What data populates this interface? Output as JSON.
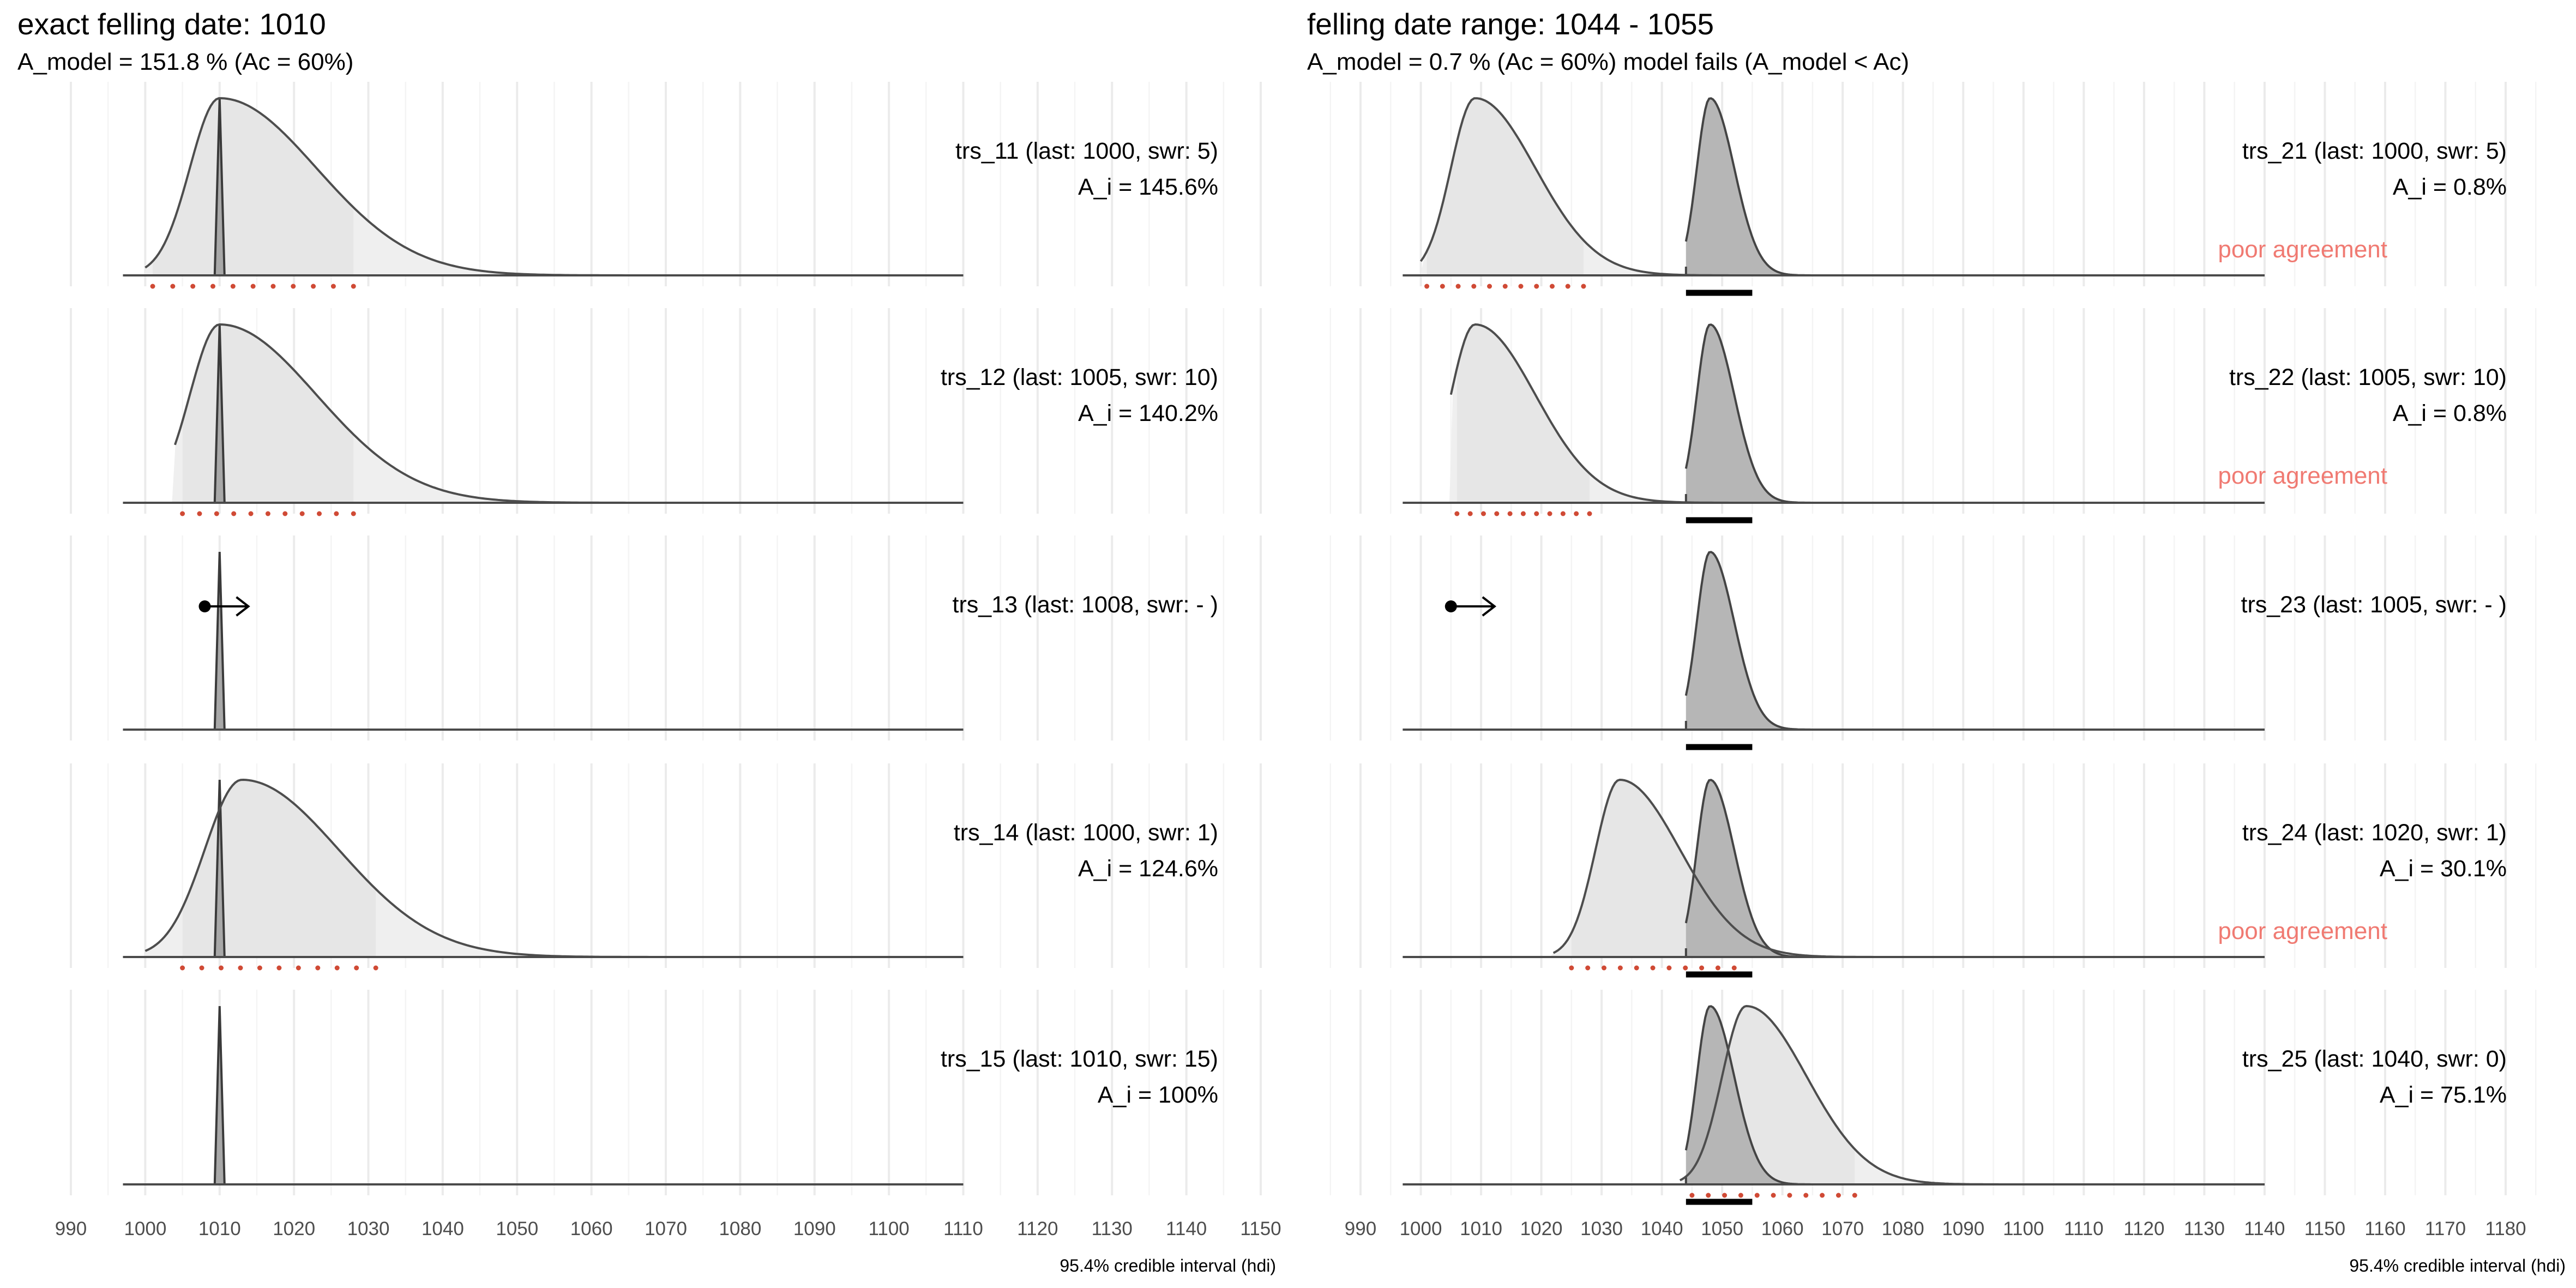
{
  "chart_data": [
    {
      "type": "area",
      "title": "exact felling date:  1010",
      "subtitle": "A_model =  151.8 % (Ac = 60%)",
      "subtitle_color": "#000000",
      "xlabel": "95.4% credible interval (hdi)",
      "xlim": [
        985,
        1157
      ],
      "x_ticks": [
        990,
        1000,
        1010,
        1020,
        1030,
        1040,
        1050,
        1060,
        1070,
        1080,
        1090,
        1100,
        1110,
        1120,
        1130,
        1140,
        1150
      ],
      "density_range": [
        997,
        1110
      ],
      "grid": true,
      "model": {
        "kind": "spike",
        "value": 1010
      },
      "series": [
        {
          "label": "trs_11 (last: 1000, swr: 5)",
          "agreement": "A_i = 145.6%",
          "warning": "",
          "kind": "density",
          "mode": 1010,
          "left_sd": 4,
          "right_sd": 13,
          "start": 1000,
          "hdi": [
            1001,
            1028
          ]
        },
        {
          "label": "trs_12 (last: 1005, swr: 10)",
          "agreement": "A_i = 140.2%",
          "warning": "",
          "kind": "density",
          "mode": 1010,
          "left_sd": 4,
          "right_sd": 13,
          "start": 1004,
          "hdi": [
            1005,
            1028
          ]
        },
        {
          "label": "trs_13 (last: 1008, swr: - )",
          "agreement": "",
          "warning": "",
          "kind": "arrow",
          "from": 1008
        },
        {
          "label": "trs_14 (last: 1000, swr: 1)",
          "agreement": "A_i = 124.6%",
          "warning": "",
          "kind": "density",
          "mode": 1013,
          "left_sd": 5,
          "right_sd": 13,
          "start": 1000,
          "hdi": [
            1005,
            1031
          ]
        },
        {
          "label": "trs_15 (last: 1010, swr: 15)",
          "agreement": "A_i = 100%",
          "warning": "",
          "kind": "none"
        }
      ]
    },
    {
      "type": "area",
      "title": "felling date range:  1044  -  1055",
      "subtitle": "A_model =  0.7 % (Ac = 60%) model fails (A_model < Ac)",
      "subtitle_color": "#d04a35",
      "xlabel": "95.4% credible interval (hdi)",
      "xlim": [
        985,
        1187
      ],
      "x_ticks": [
        990,
        1000,
        1010,
        1020,
        1030,
        1040,
        1050,
        1060,
        1070,
        1080,
        1090,
        1100,
        1110,
        1120,
        1130,
        1140,
        1150,
        1160,
        1170,
        1180
      ],
      "density_range": [
        997,
        1140
      ],
      "grid": true,
      "model": {
        "kind": "density",
        "mode": 1048,
        "left_sd": 2.2,
        "right_sd": 4,
        "start": 1044,
        "hdi": [
          1044,
          1055
        ]
      },
      "series": [
        {
          "label": "trs_21 (last: 1000, swr: 5)",
          "agreement": "A_i = 0.8%",
          "warning": "poor agreement",
          "kind": "density",
          "mode": 1009,
          "left_sd": 4,
          "right_sd": 10,
          "start": 1000,
          "hdi": [
            1001,
            1027
          ]
        },
        {
          "label": "trs_22 (last: 1005, swr: 10)",
          "agreement": "A_i = 0.8%",
          "warning": "poor agreement",
          "kind": "density",
          "mode": 1009,
          "left_sd": 4,
          "right_sd": 10,
          "start": 1005,
          "hdi": [
            1006,
            1028
          ]
        },
        {
          "label": "trs_23 (last: 1005, swr: - )",
          "agreement": "",
          "warning": "",
          "kind": "arrow",
          "from": 1005
        },
        {
          "label": "trs_24 (last: 1020, swr: 1)",
          "agreement": "A_i = 30.1%",
          "warning": "poor agreement",
          "kind": "density",
          "mode": 1033,
          "left_sd": 4,
          "right_sd": 10,
          "start": 1022,
          "hdi": [
            1025,
            1052
          ]
        },
        {
          "label": "trs_25 (last: 1040, swr: 0)",
          "agreement": "A_i = 75.1%",
          "warning": "",
          "kind": "density",
          "mode": 1054,
          "left_sd": 4,
          "right_sd": 10,
          "start": 1043,
          "hdi": [
            1045,
            1072
          ]
        }
      ]
    }
  ]
}
